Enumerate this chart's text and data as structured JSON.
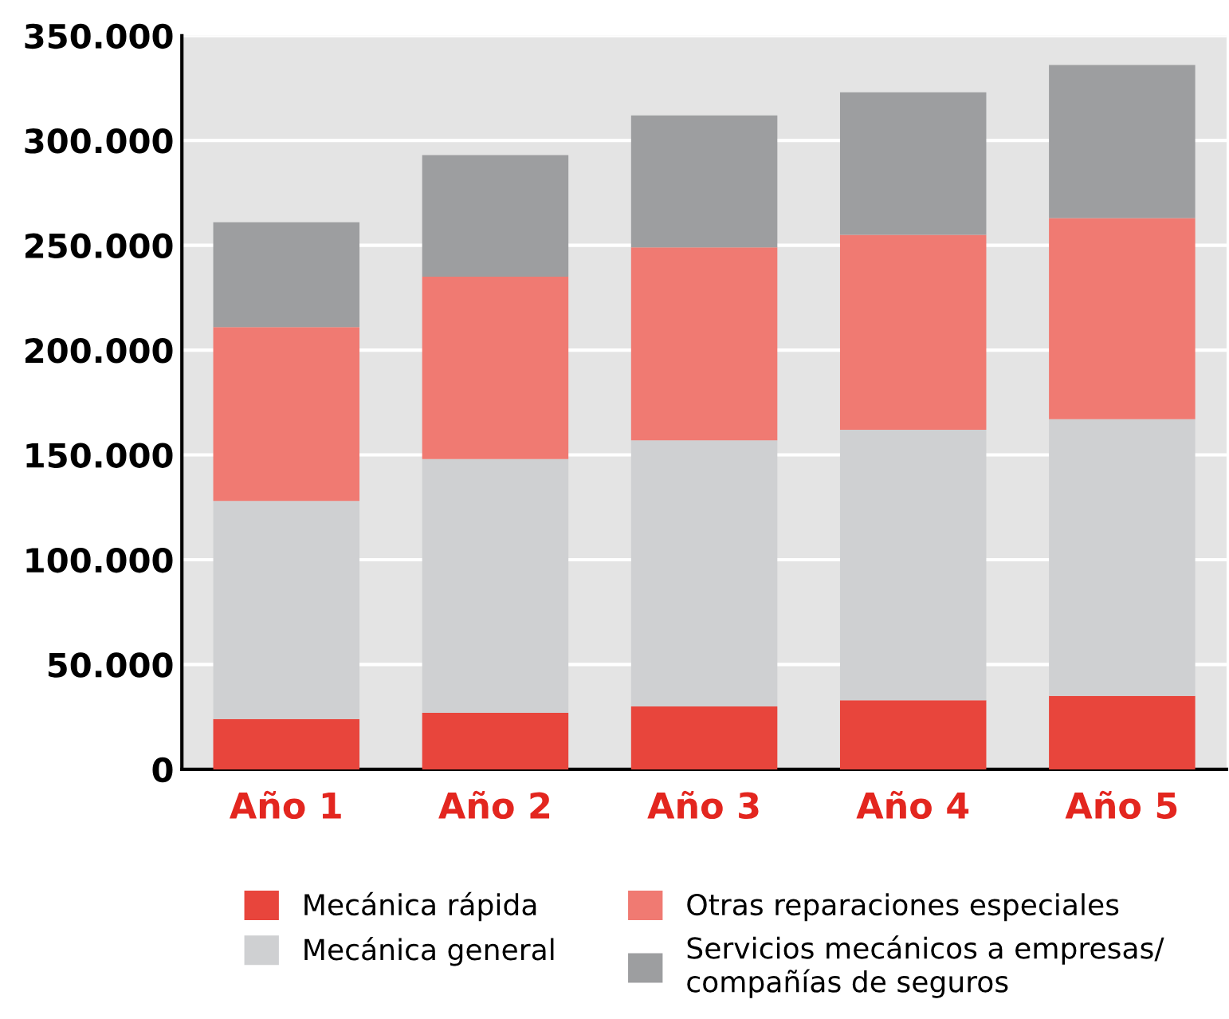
{
  "chart_data": {
    "type": "bar",
    "stacked": true,
    "categories": [
      "Año 1",
      "Año 2",
      "Año 3",
      "Año 4",
      "Año 5"
    ],
    "series": [
      {
        "name": "Mecánica rápida",
        "color": "#e8453c",
        "values": [
          24000,
          27000,
          30000,
          33000,
          35000
        ]
      },
      {
        "name": "Mecánica general",
        "color": "#cfd0d2",
        "values": [
          104000,
          121000,
          127000,
          129000,
          132000
        ]
      },
      {
        "name": "Otras reparaciones especiales",
        "color": "#f07a72",
        "values": [
          83000,
          87000,
          92000,
          93000,
          96000
        ]
      },
      {
        "name": "Servicios mecánicos a empresas/\ncompañías de seguros",
        "color": "#9d9ea0",
        "values": [
          50000,
          58000,
          63000,
          68000,
          73000
        ]
      }
    ],
    "ylim": [
      0,
      350000
    ],
    "yticks": [
      {
        "value": 0,
        "label": "0"
      },
      {
        "value": 50000,
        "label": "50.000"
      },
      {
        "value": 100000,
        "label": "100.000"
      },
      {
        "value": 150000,
        "label": "150.000"
      },
      {
        "value": 200000,
        "label": "200.000"
      },
      {
        "value": 250000,
        "label": "250.000"
      },
      {
        "value": 300000,
        "label": "300.000"
      },
      {
        "value": 350000,
        "label": "350.000"
      }
    ],
    "grid": "y",
    "legend": "bottom"
  }
}
